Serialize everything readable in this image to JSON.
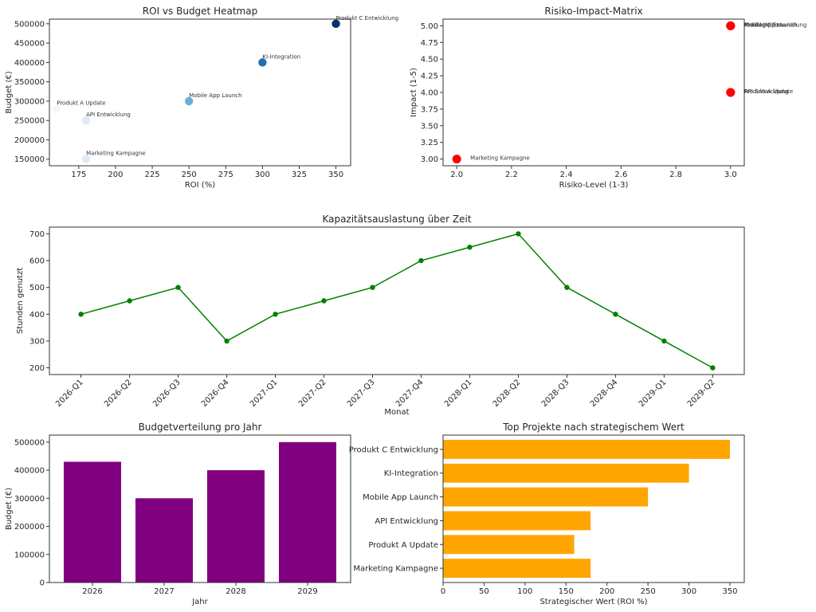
{
  "chart_data": [
    {
      "id": "roi_budget",
      "type": "scatter",
      "title": "ROI vs Budget Heatmap",
      "xlabel": "ROI (%)",
      "ylabel": "Budget (€)",
      "xlim": [
        155,
        360
      ],
      "ylim": [
        133000,
        512000
      ],
      "xticks": [
        175,
        200,
        225,
        250,
        275,
        300,
        325,
        350
      ],
      "yticks": [
        150000,
        200000,
        250000,
        300000,
        350000,
        400000,
        450000,
        500000
      ],
      "colormap": "Blues",
      "points": [
        {
          "label": "Produkt A Update",
          "x": 160,
          "y": 280000,
          "color": "#f2f7fd"
        },
        {
          "label": "API Entwicklung",
          "x": 180,
          "y": 250000,
          "color": "#dfebf7"
        },
        {
          "label": "Marketing Kampagne",
          "x": 180,
          "y": 150000,
          "color": "#dfebf7"
        },
        {
          "label": "Mobile App Launch",
          "x": 250,
          "y": 300000,
          "color": "#6aaed6"
        },
        {
          "label": "KI-Integration",
          "x": 300,
          "y": 400000,
          "color": "#2070b4"
        },
        {
          "label": "Produkt C Entwicklung",
          "x": 350,
          "y": 500000,
          "color": "#08306b"
        }
      ]
    },
    {
      "id": "risk_impact",
      "type": "scatter",
      "title": "Risiko-Impact-Matrix",
      "xlabel": "Risiko-Level (1-3)",
      "ylabel": "Impact (1-5)",
      "xlim": [
        1.95,
        3.05
      ],
      "ylim": [
        2.9,
        5.1
      ],
      "xticks": [
        2.0,
        2.2,
        2.4,
        2.6,
        2.8,
        3.0
      ],
      "yticks": [
        3.0,
        3.25,
        3.5,
        3.75,
        4.0,
        4.25,
        4.5,
        4.75,
        5.0
      ],
      "color": "#ff0000",
      "points": [
        {
          "label": "Marketing Kampagne",
          "x": 2,
          "y": 3
        },
        {
          "label": "Produkt C Entwicklung",
          "x": 3,
          "y": 5
        },
        {
          "label": "KI-Integration",
          "x": 3,
          "y": 5
        },
        {
          "label": "Mobile App Launch",
          "x": 3,
          "y": 5
        },
        {
          "label": "Produkt A Update",
          "x": 3,
          "y": 4
        },
        {
          "label": "API Entwicklung",
          "x": 3,
          "y": 4
        }
      ]
    },
    {
      "id": "capacity",
      "type": "line",
      "title": "Kapazitätsauslastung über Zeit",
      "xlabel": "Monat",
      "ylabel": "Stunden genutzt",
      "ylim": [
        175,
        725
      ],
      "yticks": [
        200,
        300,
        400,
        500,
        600,
        700
      ],
      "color": "#008000",
      "categories": [
        "2026-Q1",
        "2026-Q2",
        "2026-Q3",
        "2026-Q4",
        "2027-Q1",
        "2027-Q2",
        "2027-Q3",
        "2027-Q4",
        "2028-Q1",
        "2028-Q2",
        "2028-Q3",
        "2028-Q4",
        "2029-Q1",
        "2029-Q2"
      ],
      "values": [
        400,
        450,
        500,
        300,
        400,
        450,
        500,
        600,
        650,
        700,
        500,
        400,
        300,
        200
      ]
    },
    {
      "id": "budget_year",
      "type": "bar",
      "title": "Budgetverteilung pro Jahr",
      "xlabel": "Jahr",
      "ylabel": "Budget (€)",
      "ylim": [
        0,
        525000
      ],
      "yticks": [
        0,
        100000,
        200000,
        300000,
        400000,
        500000
      ],
      "color": "#800080",
      "categories": [
        "2026",
        "2027",
        "2028",
        "2029"
      ],
      "values": [
        430000,
        300000,
        400000,
        500000
      ]
    },
    {
      "id": "strategic",
      "type": "barh",
      "title": "Top Projekte nach strategischem Wert",
      "xlabel": "Strategischer Wert (ROI %)",
      "ylabel": "",
      "xlim": [
        0,
        367.5
      ],
      "xticks": [
        0,
        50,
        100,
        150,
        200,
        250,
        300,
        350
      ],
      "color": "#ffa500",
      "categories": [
        "Produkt C Entwicklung",
        "KI-Integration",
        "Mobile App Launch",
        "API Entwicklung",
        "Produkt A Update",
        "Marketing Kampagne"
      ],
      "values": [
        350,
        300,
        250,
        180,
        160,
        180
      ]
    }
  ]
}
